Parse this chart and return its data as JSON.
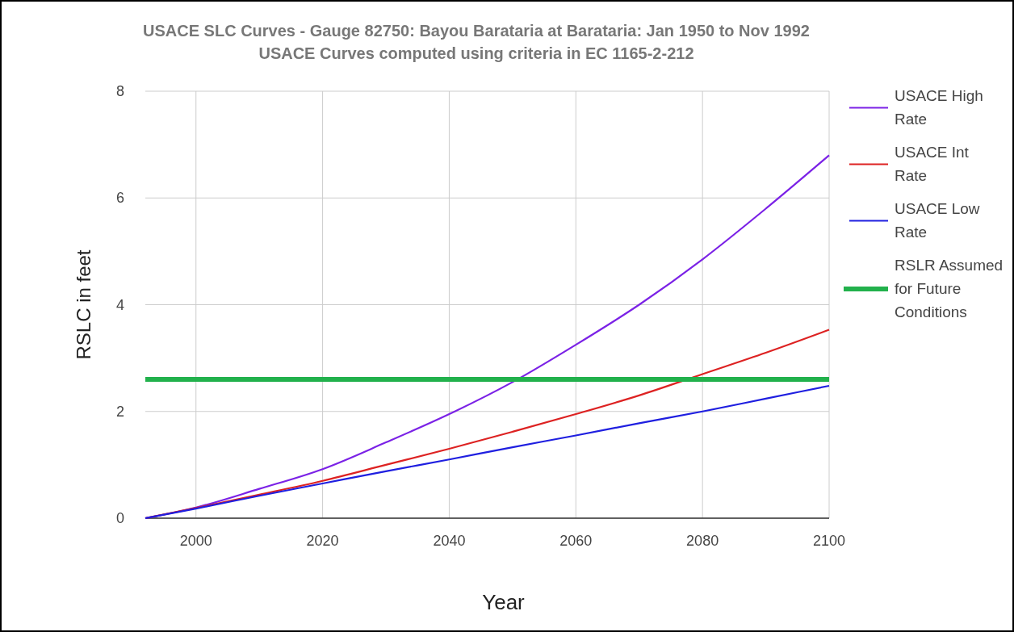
{
  "chart_data": {
    "type": "line",
    "title": "USACE SLC Curves - Gauge 82750: Bayou Barataria at Barataria: Jan 1950 to Nov 1992",
    "subtitle": "USACE Curves computed using criteria in EC 1165-2-212",
    "xlabel": "Year",
    "ylabel": "RSLC in feet",
    "x": [
      1992,
      2000,
      2010,
      2020,
      2030,
      2040,
      2050,
      2060,
      2070,
      2080,
      2090,
      2100
    ],
    "series": [
      {
        "name": "USACE High Rate",
        "color": "#7b22e6",
        "values": [
          0,
          0.2,
          0.55,
          0.92,
          1.42,
          1.95,
          2.55,
          3.25,
          4.0,
          4.85,
          5.8,
          6.8
        ]
      },
      {
        "name": "USACE Int Rate",
        "color": "#dd2222",
        "values": [
          0,
          0.19,
          0.44,
          0.7,
          1.0,
          1.3,
          1.62,
          1.95,
          2.3,
          2.7,
          3.1,
          3.53
        ]
      },
      {
        "name": "USACE Low Rate",
        "color": "#1f1fe0",
        "values": [
          0,
          0.18,
          0.42,
          0.65,
          0.88,
          1.1,
          1.33,
          1.55,
          1.78,
          2.0,
          2.24,
          2.48
        ]
      },
      {
        "name": "RSLR Assumed for Future Conditions",
        "color": "#22b14c",
        "x": [
          1992,
          2100
        ],
        "values": [
          2.6,
          2.6
        ]
      }
    ],
    "xlim": [
      1992,
      2100
    ],
    "xticks": [
      2000,
      2020,
      2040,
      2060,
      2080,
      2100
    ],
    "ylim": [
      0,
      8
    ],
    "yticks": [
      0,
      2,
      4,
      6,
      8
    ],
    "grid": true,
    "legend": "right",
    "marker": "none",
    "line_style": "solid"
  }
}
